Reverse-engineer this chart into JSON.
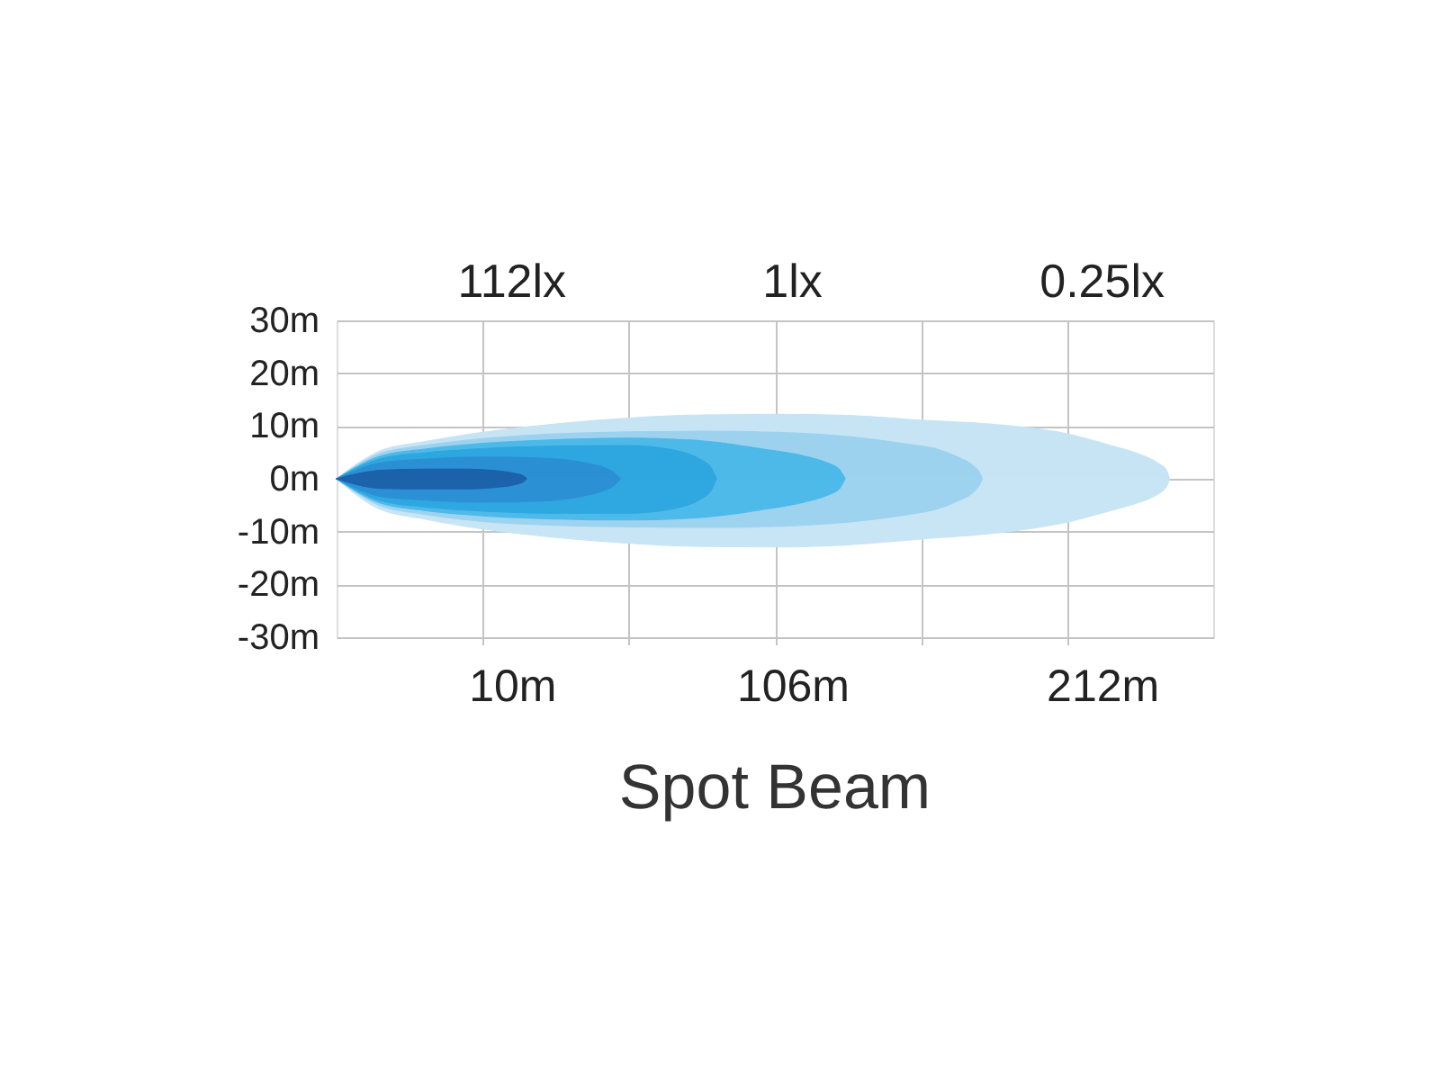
{
  "chart_data": {
    "type": "area",
    "title": "Spot Beam",
    "series": [
      {
        "color": "#c6e4f4",
        "x": [
          -50,
          -35,
          -20,
          0,
          25,
          50,
          75,
          100,
          125,
          150,
          175,
          200,
          215,
          225,
          231,
          234,
          235
        ],
        "values": [
          0,
          5.3,
          7.0,
          8.8,
          10.4,
          11.5,
          12.1,
          12.2,
          12.0,
          11.1,
          10.3,
          8.5,
          6.3,
          4.6,
          3.0,
          1.6,
          0
        ]
      },
      {
        "color": "#c7e5f5",
        "x": [
          -50,
          -35,
          -20,
          0,
          25,
          50,
          75,
          100,
          125,
          150,
          175,
          200,
          215,
          225,
          231,
          234,
          235
        ],
        "values": [
          0,
          -5.8,
          -7.6,
          -9.5,
          -11.1,
          -12.2,
          -12.8,
          -12.9,
          -12.5,
          -11.4,
          -10.3,
          -8.2,
          -6.0,
          -4.4,
          -2.9,
          -1.5,
          0
        ]
      },
      {
        "color": "#9dd2ef",
        "x": [
          -50,
          -35,
          -20,
          0,
          25,
          50,
          75,
          100,
          125,
          145,
          155,
          163,
          168,
          170,
          171
        ],
        "values": [
          0,
          4.8,
          6.3,
          7.6,
          8.5,
          8.9,
          9.0,
          8.8,
          8.0,
          6.6,
          5.7,
          4.0,
          2.4,
          1.2,
          0
        ]
      },
      {
        "color": "#9ed3f0",
        "x": [
          -50,
          -35,
          -20,
          0,
          25,
          50,
          75,
          100,
          125,
          145,
          155,
          163,
          168,
          170,
          171
        ],
        "values": [
          0,
          -5.1,
          -6.7,
          -8.1,
          -8.8,
          -9.1,
          -9.2,
          -9.0,
          -8.2,
          -6.8,
          -5.8,
          -4.1,
          -2.5,
          -1.2,
          0
        ]
      },
      {
        "color": "#4db9e8",
        "x": [
          -50,
          -35,
          -20,
          0,
          25,
          50,
          75,
          95,
          110,
          118,
          122,
          124
        ],
        "values": [
          0,
          4.3,
          5.6,
          6.7,
          7.4,
          7.7,
          7.2,
          5.7,
          4.3,
          3.0,
          1.8,
          0
        ]
      },
      {
        "color": "#4ebae9",
        "x": [
          -50,
          -35,
          -20,
          0,
          25,
          50,
          75,
          95,
          110,
          118,
          122,
          124
        ],
        "values": [
          0,
          -4.6,
          -6.0,
          -7.0,
          -7.6,
          -7.8,
          -7.3,
          -5.9,
          -4.4,
          -3.1,
          -1.9,
          0
        ]
      },
      {
        "color": "#2ea6e0",
        "x": [
          -50,
          -35,
          -20,
          0,
          25,
          50,
          65,
          74,
          78,
          80
        ],
        "values": [
          0,
          3.8,
          4.9,
          5.7,
          6.2,
          6.3,
          5.5,
          3.8,
          2.2,
          0
        ]
      },
      {
        "color": "#2fa7e1",
        "x": [
          -50,
          -35,
          -20,
          0,
          25,
          50,
          65,
          74,
          78,
          80
        ],
        "values": [
          0,
          -4.1,
          -5.3,
          -6.1,
          -6.5,
          -6.5,
          -5.7,
          -4.0,
          -2.3,
          0
        ]
      },
      {
        "color": "#2a90d3",
        "x": [
          -50,
          -35,
          -20,
          0,
          20,
          35,
          42,
          45,
          47
        ],
        "values": [
          0,
          3.0,
          3.7,
          4.1,
          3.9,
          3.0,
          2.0,
          1.1,
          0
        ]
      },
      {
        "color": "#2b91d4",
        "x": [
          -50,
          -35,
          -20,
          0,
          20,
          35,
          42,
          45,
          47
        ],
        "values": [
          0,
          -3.3,
          -4.0,
          -4.4,
          -4.2,
          -3.2,
          -2.1,
          -1.2,
          0
        ]
      },
      {
        "color": "#1b62ab",
        "x": [
          -50,
          -35,
          -20,
          -5,
          5,
          11,
          14,
          15
        ],
        "values": [
          0,
          1.6,
          1.8,
          1.8,
          1.5,
          1.0,
          0.5,
          0
        ]
      },
      {
        "color": "#1c63ac",
        "x": [
          -50,
          -35,
          -20,
          -5,
          5,
          11,
          14,
          15
        ],
        "values": [
          0,
          -1.8,
          -1.9,
          -1.9,
          -1.6,
          -1.1,
          -0.5,
          0
        ]
      }
    ],
    "xlim": [
      -50,
      250
    ],
    "xticks": [
      {
        "value": 0,
        "label": null
      },
      {
        "value": 10,
        "label": "10m"
      },
      {
        "value": 50,
        "label": null
      },
      {
        "value": 100,
        "label": null
      },
      {
        "value": 106,
        "label": "106m"
      },
      {
        "value": 150,
        "label": null
      },
      {
        "value": 200,
        "label": null
      },
      {
        "value": 212,
        "label": "212m"
      }
    ],
    "ylim": [
      -30,
      30
    ],
    "yticks": [
      {
        "value": 30,
        "label": "30m"
      },
      {
        "value": 20,
        "label": "20m"
      },
      {
        "value": 10,
        "label": "10m"
      },
      {
        "value": 0,
        "label": "0m"
      },
      {
        "value": -10,
        "label": "-10m"
      },
      {
        "value": -20,
        "label": "-20m"
      },
      {
        "value": -30,
        "label": "-30m"
      }
    ],
    "annotations": [
      "112lx",
      "1lx",
      "0.25lx"
    ],
    "grid": true
  }
}
